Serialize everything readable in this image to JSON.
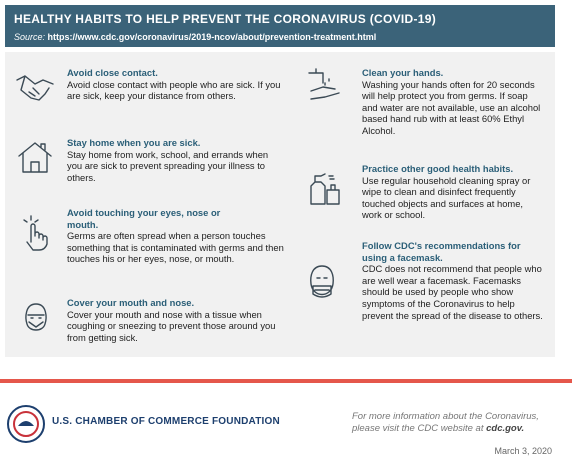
{
  "header": {
    "title": "HEALTHY HABITS TO HELP PREVENT THE CORONAVIRUS (COVID-19)",
    "source_label": "Source:",
    "source_url": "https://www.cdc.gov/coronavirus/2019-ncov/about/prevention-treatment.html"
  },
  "tips": [
    {
      "title": "Avoid close contact.",
      "body": "Avoid close contact with people who are sick. If you are sick, keep your distance from others."
    },
    {
      "title": "Stay home when you are sick.",
      "body": "Stay home from work, school, and errands when you are sick to prevent spreading your illness to others."
    },
    {
      "title": "Avoid touching your eyes, nose or mouth.",
      "body": "Germs are often spread when a person touches something that is contaminated with germs and then touches his or her eyes, nose, or mouth."
    },
    {
      "title": "Cover your mouth and nose.",
      "body": "Cover your mouth and nose with a tissue when coughing or sneezing to prevent those around you from getting sick."
    },
    {
      "title": "Clean your hands.",
      "body": "Washing your hands often for 20 seconds will help protect you from germs. If soap and water are not available, use an alcohol based hand rub with at least 60% Ethyl Alcohol."
    },
    {
      "title": "Practice other good health habits.",
      "body": "Use regular household cleaning spray or wipe to clean and disinfect frequently touched objects and surfaces at home, work or school."
    },
    {
      "title": "Follow CDC's recommendations for using a facemask.",
      "body": "CDC does not recommend that people who are well wear a facemask. Facemasks should be used by people who show symptoms of the Coronavirus to help prevent the spread of the disease to others."
    }
  ],
  "footer": {
    "organization": "U.S. CHAMBER OF COMMERCE FOUNDATION",
    "note": "For more information about the Coronavirus, please visit the CDC website at",
    "note_link": "cdc.gov.",
    "date": "March 3, 2020"
  }
}
